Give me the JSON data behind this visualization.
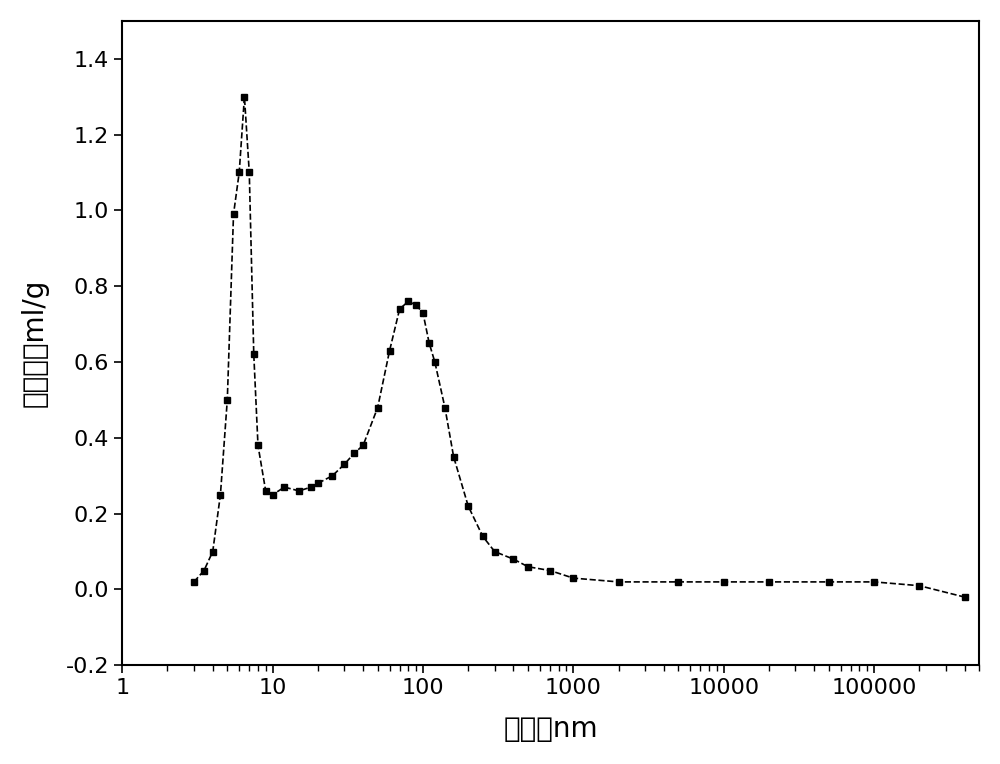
{
  "x": [
    3.0,
    3.5,
    4.0,
    4.5,
    5.0,
    5.5,
    6.0,
    6.5,
    7.0,
    7.5,
    8.0,
    9.0,
    10.0,
    12.0,
    15.0,
    18.0,
    20.0,
    25.0,
    30.0,
    35.0,
    40.0,
    50.0,
    60.0,
    70.0,
    80.0,
    90.0,
    100.0,
    110.0,
    120.0,
    140.0,
    160.0,
    200.0,
    250.0,
    300.0,
    400.0,
    500.0,
    700.0,
    1000.0,
    2000.0,
    5000.0,
    10000.0,
    20000.0,
    50000.0,
    100000.0,
    200000.0,
    400000.0
  ],
  "y": [
    0.02,
    0.05,
    0.1,
    0.25,
    0.5,
    0.99,
    1.1,
    1.3,
    1.1,
    0.62,
    0.38,
    0.26,
    0.25,
    0.27,
    0.26,
    0.27,
    0.28,
    0.3,
    0.33,
    0.36,
    0.38,
    0.48,
    0.63,
    0.74,
    0.76,
    0.75,
    0.73,
    0.65,
    0.6,
    0.48,
    0.35,
    0.22,
    0.14,
    0.1,
    0.08,
    0.06,
    0.05,
    0.03,
    0.02,
    0.02,
    0.02,
    0.02,
    0.02,
    0.02,
    0.01,
    -0.02
  ],
  "xlabel": "孔径，nm",
  "ylabel": "压求量，ml/g",
  "xlim": [
    1,
    500000
  ],
  "ylim": [
    -0.2,
    1.5
  ],
  "yticks": [
    -0.2,
    0.0,
    0.2,
    0.4,
    0.6,
    0.8,
    1.0,
    1.2,
    1.4
  ],
  "ytick_labels": [
    "-0.2",
    "0.0",
    "0.2",
    "0.4",
    "0.6",
    "0.8",
    "1.0",
    "1.2",
    "1.4"
  ],
  "xtick_locs": [
    1,
    10,
    100,
    1000,
    10000,
    100000
  ],
  "xtick_labels": [
    "1",
    "10",
    "100",
    "1000",
    "10000",
    "100000"
  ],
  "line_color": "#000000",
  "marker": "s",
  "marker_size": 5,
  "line_style": "--",
  "background_color": "#ffffff",
  "xlabel_fontsize": 20,
  "ylabel_fontsize": 20,
  "tick_fontsize": 16
}
